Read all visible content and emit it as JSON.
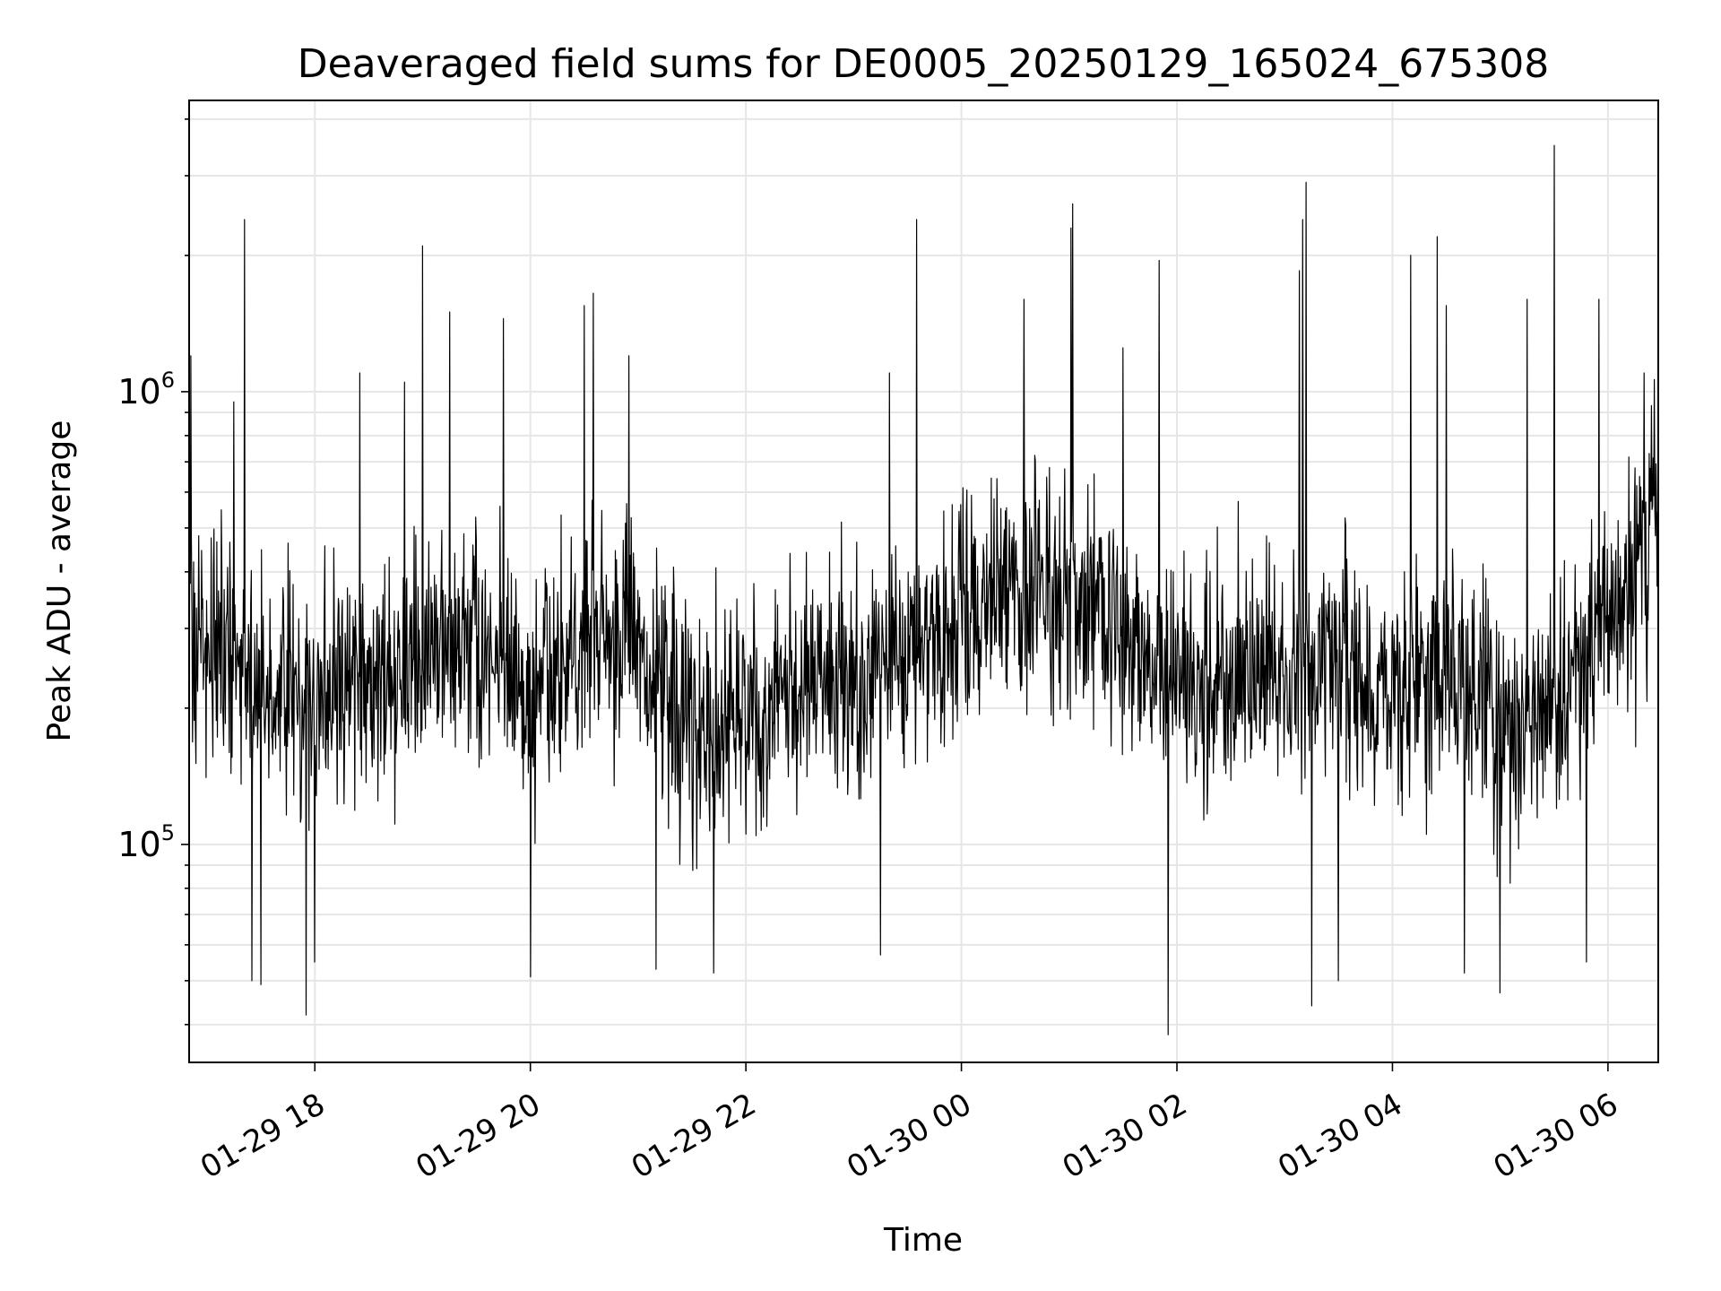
{
  "chart_data": {
    "type": "line",
    "title": "Deaveraged field sums for DE0005_20250129_165024_675308",
    "xlabel": "Time",
    "ylabel": "Peak ADU - average",
    "yscale": "log",
    "grid": true,
    "xlim": [
      "2025-01-29 16:50",
      "2025-01-30 06:28"
    ],
    "ylim": [
      33000,
      4400000
    ],
    "x_ticks": [
      {
        "t": "2025-01-29 18:00",
        "label": "01-29 18"
      },
      {
        "t": "2025-01-29 20:00",
        "label": "01-29 20"
      },
      {
        "t": "2025-01-29 22:00",
        "label": "01-29 22"
      },
      {
        "t": "2025-01-30 00:00",
        "label": "01-30 00"
      },
      {
        "t": "2025-01-30 02:00",
        "label": "01-30 02"
      },
      {
        "t": "2025-01-30 04:00",
        "label": "01-30 04"
      },
      {
        "t": "2025-01-30 06:00",
        "label": "01-30 06"
      }
    ],
    "y_ticks": [
      {
        "value": 100000,
        "base": "10",
        "exp": "5"
      },
      {
        "value": 1000000,
        "base": "10",
        "exp": "6"
      }
    ],
    "series": [
      {
        "color": "#000000",
        "baseline": [
          [
            "2025-01-29 16:50",
            280000
          ],
          [
            "2025-01-29 17:30",
            230000
          ],
          [
            "2025-01-29 18:00",
            210000
          ],
          [
            "2025-01-29 18:30",
            230000
          ],
          [
            "2025-01-29 19:00",
            250000
          ],
          [
            "2025-01-29 19:30",
            280000
          ],
          [
            "2025-01-29 20:00",
            210000
          ],
          [
            "2025-01-29 20:30",
            290000
          ],
          [
            "2025-01-29 21:00",
            260000
          ],
          [
            "2025-01-29 21:30",
            180000
          ],
          [
            "2025-01-29 22:00",
            190000
          ],
          [
            "2025-01-29 22:30",
            210000
          ],
          [
            "2025-01-29 23:00",
            240000
          ],
          [
            "2025-01-29 23:30",
            260000
          ],
          [
            "2025-01-30 00:00",
            320000
          ],
          [
            "2025-01-30 00:40",
            380000
          ],
          [
            "2025-01-30 01:20",
            300000
          ],
          [
            "2025-01-30 02:00",
            230000
          ],
          [
            "2025-01-30 02:30",
            220000
          ],
          [
            "2025-01-30 03:00",
            250000
          ],
          [
            "2025-01-30 03:30",
            260000
          ],
          [
            "2025-01-30 04:00",
            230000
          ],
          [
            "2025-01-30 04:30",
            230000
          ],
          [
            "2025-01-30 05:00",
            190000
          ],
          [
            "2025-01-30 05:30",
            200000
          ],
          [
            "2025-01-30 06:00",
            330000
          ],
          [
            "2025-01-30 06:28",
            520000
          ]
        ],
        "peaks": [
          [
            "2025-01-29 16:51",
            1200000
          ],
          [
            "2025-01-29 17:15",
            950000
          ],
          [
            "2025-01-29 17:21",
            2400000
          ],
          [
            "2025-01-29 18:25",
            1100000
          ],
          [
            "2025-01-29 18:50",
            1050000
          ],
          [
            "2025-01-29 19:00",
            2100000
          ],
          [
            "2025-01-29 19:15",
            1500000
          ],
          [
            "2025-01-29 19:45",
            1450000
          ],
          [
            "2025-01-29 20:30",
            1550000
          ],
          [
            "2025-01-29 20:35",
            1650000
          ],
          [
            "2025-01-29 20:55",
            1200000
          ],
          [
            "2025-01-29 23:20",
            1100000
          ],
          [
            "2025-01-29 23:35",
            2400000
          ],
          [
            "2025-01-30 00:35",
            1600000
          ],
          [
            "2025-01-30 01:01",
            2300000
          ],
          [
            "2025-01-30 01:02",
            2600000
          ],
          [
            "2025-01-30 01:30",
            1250000
          ],
          [
            "2025-01-30 01:50",
            1950000
          ],
          [
            "2025-01-30 03:08",
            1850000
          ],
          [
            "2025-01-30 03:10",
            2400000
          ],
          [
            "2025-01-30 03:12",
            2900000
          ],
          [
            "2025-01-30 04:10",
            2000000
          ],
          [
            "2025-01-30 04:25",
            2200000
          ],
          [
            "2025-01-30 04:30",
            1550000
          ],
          [
            "2025-01-30 05:15",
            1600000
          ],
          [
            "2025-01-30 05:30",
            3500000
          ],
          [
            "2025-01-30 05:55",
            1600000
          ],
          [
            "2025-01-30 06:20",
            1100000
          ]
        ],
        "troughs": [
          [
            "2025-01-29 17:25",
            50000
          ],
          [
            "2025-01-29 17:30",
            49000
          ],
          [
            "2025-01-29 17:55",
            42000
          ],
          [
            "2025-01-29 18:00",
            55000
          ],
          [
            "2025-01-29 20:00",
            51000
          ],
          [
            "2025-01-29 21:10",
            53000
          ],
          [
            "2025-01-29 21:42",
            52000
          ],
          [
            "2025-01-29 23:15",
            57000
          ],
          [
            "2025-01-30 01:55",
            38000
          ],
          [
            "2025-01-30 03:15",
            44000
          ],
          [
            "2025-01-30 03:30",
            50000
          ],
          [
            "2025-01-30 04:40",
            52000
          ],
          [
            "2025-01-30 05:00",
            47000
          ],
          [
            "2025-01-30 05:48",
            55000
          ]
        ]
      }
    ]
  }
}
